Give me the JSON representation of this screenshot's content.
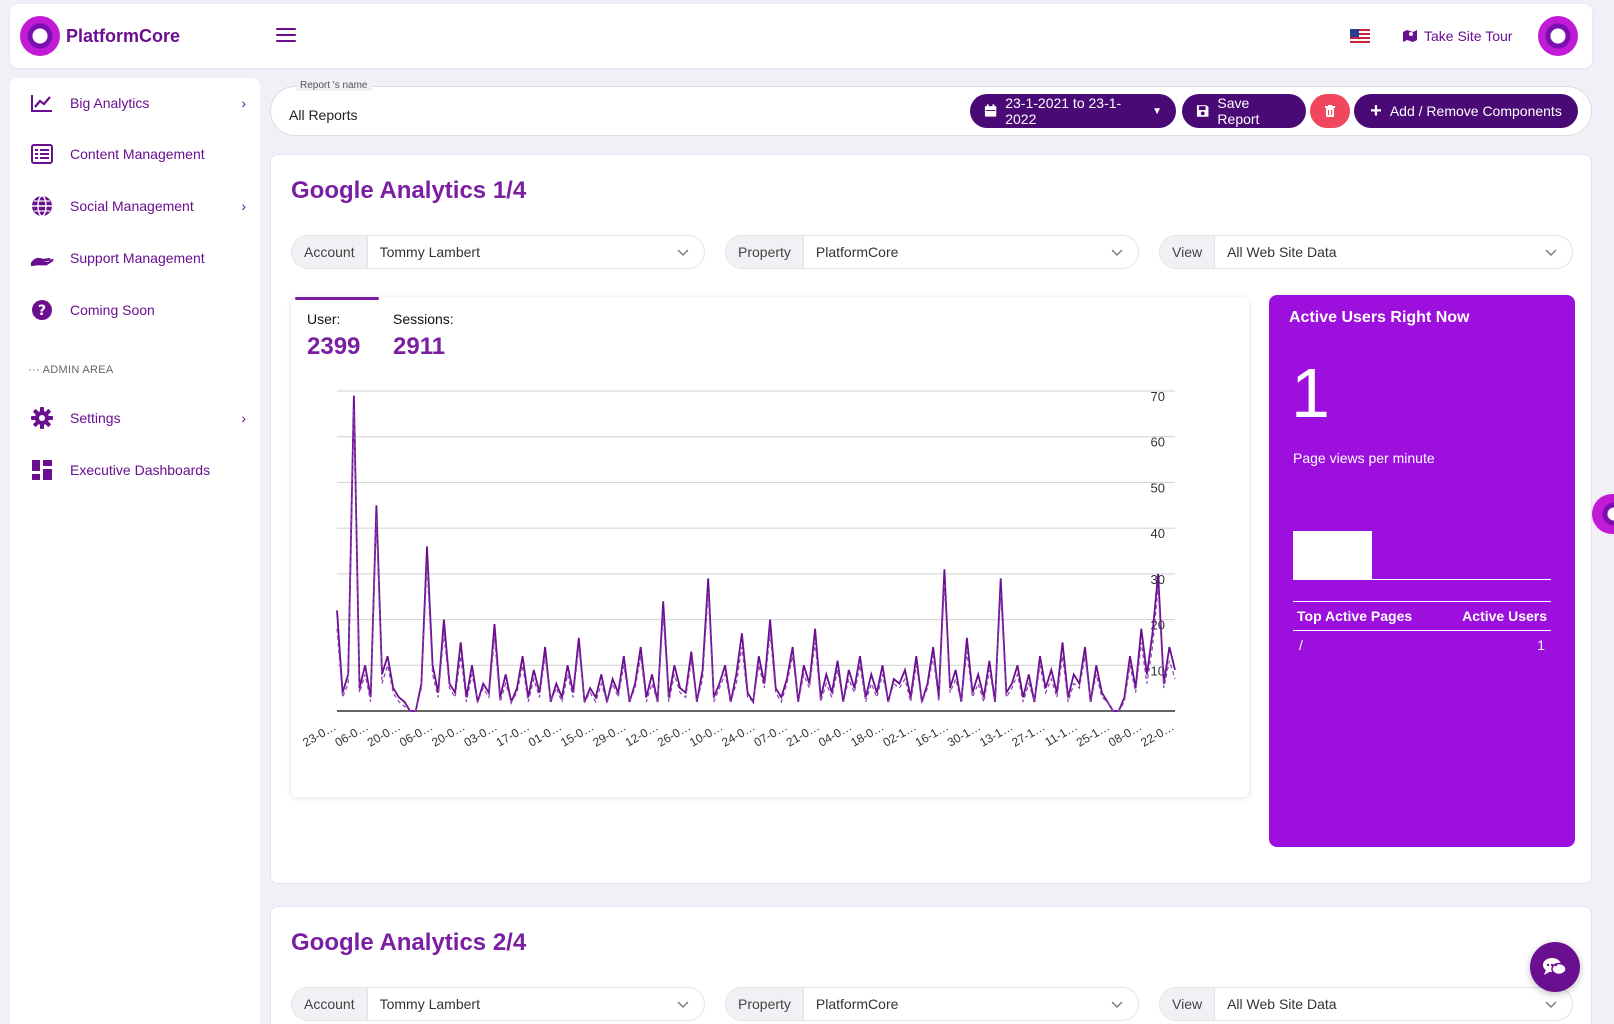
{
  "brand": {
    "name": "PlatformCore"
  },
  "topbar": {
    "tour_label": "Take Site Tour"
  },
  "sidebar": {
    "items": [
      {
        "label": "Big Analytics"
      },
      {
        "label": "Content Management"
      },
      {
        "label": "Social Management"
      },
      {
        "label": "Support Management"
      },
      {
        "label": "Coming Soon"
      },
      {
        "label": "Settings"
      },
      {
        "label": "Executive Dashboards"
      }
    ],
    "admin_label": "ADMIN AREA"
  },
  "report": {
    "name_label": "Report 's name",
    "name_value": "All Reports",
    "date_range": "23-1-2021 to 23-1-2022",
    "save_label": "Save Report",
    "components_label": "Add / Remove Components"
  },
  "card1": {
    "title": "Google Analytics 1/4",
    "account_prefix": "Account",
    "account_value": "Tommy Lambert",
    "property_prefix": "Property",
    "property_value": "PlatformCore",
    "view_prefix": "View",
    "view_value": "All Web Site Data",
    "user_label": "User:",
    "user_value": "2399",
    "sessions_label": "Sessions:",
    "sessions_value": "2911"
  },
  "active_panel": {
    "title": "Active Users Right Now",
    "count": "1",
    "subtitle": "Page views per minute",
    "col_pages": "Top Active Pages",
    "col_users": "Active Users",
    "rows": [
      {
        "page": "/",
        "users": "1"
      }
    ]
  },
  "card2": {
    "title": "Google Analytics 2/4",
    "account_prefix": "Account",
    "account_value": "Tommy Lambert",
    "property_prefix": "Property",
    "property_value": "PlatformCore",
    "view_prefix": "View",
    "view_value": "All Web Site Data"
  },
  "colors": {
    "accent": "#7b1fa2",
    "dark": "#4a0a75",
    "panel": "#9c0fdc",
    "danger": "#f0465e"
  },
  "chart_data": {
    "type": "line",
    "title": "",
    "xlabel": "",
    "ylabel": "",
    "ylim": [
      0,
      70
    ],
    "y_ticks": [
      10,
      20,
      30,
      40,
      50,
      60,
      70
    ],
    "x_tick_labels": [
      "23-0…",
      "06-0…",
      "20-0…",
      "06-0…",
      "20-0…",
      "03-0…",
      "17-0…",
      "01-0…",
      "15-0…",
      "29-0…",
      "12-0…",
      "26-0…",
      "10-0…",
      "24-0…",
      "07-0…",
      "21-0…",
      "04-0…",
      "18-0…",
      "02-1…",
      "16-1…",
      "30-1…",
      "13-1…",
      "27-1…",
      "11-1…",
      "25-1…",
      "08-0…",
      "22-0…"
    ],
    "series": [
      {
        "name": "Users",
        "style": "solid",
        "values": [
          22,
          4,
          8,
          69,
          5,
          10,
          3,
          45,
          8,
          12,
          5,
          3,
          2,
          0,
          0,
          6,
          36,
          10,
          4,
          20,
          6,
          4,
          15,
          3,
          10,
          2,
          6,
          4,
          19,
          3,
          8,
          2,
          5,
          12,
          3,
          9,
          4,
          14,
          2,
          6,
          3,
          10,
          4,
          16,
          2,
          5,
          3,
          8,
          2,
          7,
          4,
          12,
          2,
          6,
          14,
          3,
          8,
          2,
          24,
          3,
          10,
          5,
          4,
          13,
          2,
          9,
          29,
          3,
          6,
          10,
          2,
          8,
          17,
          4,
          2,
          12,
          6,
          20,
          5,
          3,
          7,
          14,
          2,
          10,
          6,
          18,
          3,
          8,
          4,
          11,
          2,
          9,
          5,
          12,
          3,
          8,
          4,
          10,
          2,
          7,
          6,
          9,
          3,
          12,
          2,
          6,
          14,
          3,
          31,
          5,
          9,
          2,
          16,
          4,
          8,
          3,
          11,
          2,
          29,
          4,
          6,
          10,
          3,
          8,
          2,
          12,
          5,
          9,
          4,
          15,
          3,
          8,
          6,
          14,
          2,
          10,
          4,
          2,
          0,
          0,
          3,
          12,
          5,
          18,
          8,
          17,
          30,
          6,
          14,
          9
        ]
      },
      {
        "name": "Sessions",
        "style": "dashed",
        "values": [
          18,
          3,
          6,
          66,
          4,
          8,
          2,
          42,
          6,
          10,
          4,
          2,
          1,
          0,
          0,
          5,
          32,
          8,
          3,
          17,
          5,
          3,
          12,
          2,
          8,
          2,
          5,
          3,
          16,
          2,
          6,
          2,
          4,
          10,
          2,
          7,
          3,
          12,
          2,
          5,
          2,
          8,
          3,
          14,
          2,
          4,
          2,
          6,
          2,
          6,
          3,
          10,
          2,
          5,
          12,
          2,
          6,
          2,
          21,
          2,
          8,
          4,
          3,
          11,
          2,
          7,
          26,
          2,
          5,
          8,
          2,
          6,
          14,
          3,
          2,
          10,
          5,
          17,
          4,
          2,
          6,
          12,
          2,
          8,
          5,
          15,
          2,
          6,
          3,
          9,
          2,
          7,
          4,
          10,
          2,
          6,
          3,
          8,
          2,
          6,
          5,
          7,
          2,
          10,
          2,
          5,
          12,
          2,
          28,
          4,
          7,
          2,
          13,
          3,
          6,
          2,
          9,
          2,
          26,
          3,
          5,
          8,
          2,
          6,
          2,
          10,
          4,
          7,
          3,
          12,
          2,
          6,
          5,
          12,
          2,
          8,
          3,
          2,
          0,
          0,
          2,
          10,
          4,
          15,
          6,
          14,
          27,
          5,
          11,
          7
        ]
      }
    ]
  }
}
